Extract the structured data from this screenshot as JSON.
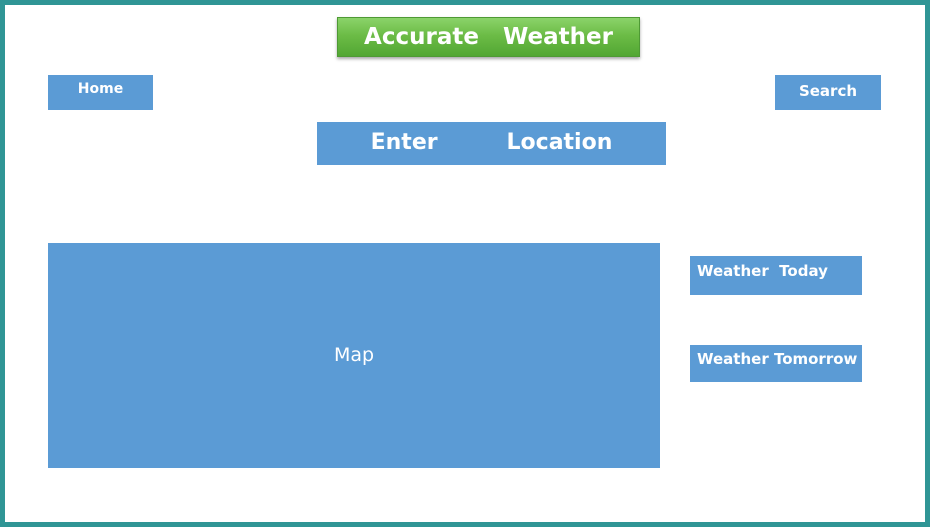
{
  "app": {
    "title": "Accurate   Weather"
  },
  "nav": {
    "home_label": "Home",
    "search_label": "Search"
  },
  "location": {
    "placeholder": "Enter         Location"
  },
  "map": {
    "label": "Map"
  },
  "forecast": {
    "today_label": "Weather  Today",
    "tomorrow_label": "Weather Tomorrow"
  },
  "colors": {
    "frame_border": "#2f9595",
    "title_banner": "#6cbc46",
    "panel_blue": "#5b9bd5",
    "text_light": "#ffffff"
  }
}
